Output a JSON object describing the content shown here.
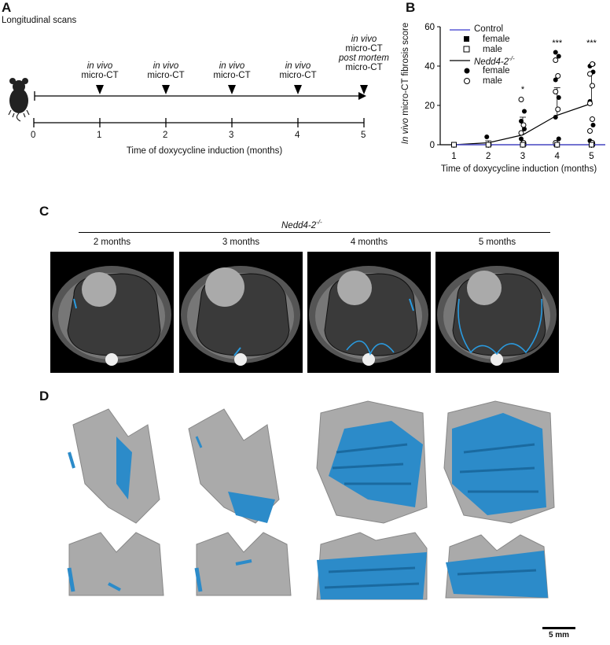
{
  "panel_labels": {
    "a": "A",
    "b": "B",
    "c": "C",
    "d": "D"
  },
  "panel_a": {
    "title": "Longitudinal scans",
    "scans": [
      {
        "line1": "in vivo",
        "line2": "micro-CT"
      },
      {
        "line1": "in vivo",
        "line2": "micro-CT"
      },
      {
        "line1": "in vivo",
        "line2": "micro-CT"
      },
      {
        "line1": "in vivo",
        "line2": "micro-CT"
      },
      {
        "line0": "in vivo",
        "line0b": "micro-CT",
        "line1": "post mortem",
        "line2": "micro-CT"
      }
    ],
    "ticks": [
      "0",
      "1",
      "2",
      "3",
      "4",
      "5"
    ],
    "xlabel": "Time of doxycycline induction (months)"
  },
  "panel_c": {
    "group": "Nedd4-2",
    "group_sup": "-/-",
    "timepoints": [
      "2 months",
      "3 months",
      "4 months",
      "5 months"
    ]
  },
  "panel_d": {
    "scalebar": "5 mm"
  },
  "chart_data": {
    "type": "line",
    "ylabel_italic": "In vivo",
    "ylabel_rest": " micro-CT fibrosis score",
    "xlabel": "Time of doxycycline induction (months)",
    "x": [
      1,
      2,
      3,
      4,
      5
    ],
    "xlim": [
      0.6,
      5.4
    ],
    "ylim": [
      0,
      60
    ],
    "yticks": [
      0,
      20,
      40,
      60
    ],
    "legend": {
      "control": "Control",
      "female": "female",
      "male": "male",
      "ko": "Nedd4-2",
      "ko_sup": "-/-",
      "ko_female": "female",
      "ko_male": "male"
    },
    "colors": {
      "control": "#5a5ad6",
      "ko": "#000000"
    },
    "series": [
      {
        "name": "Control",
        "values": [
          0,
          0,
          0,
          0,
          0
        ]
      },
      {
        "name": "Nedd4-2-/-",
        "values": [
          0,
          1,
          5,
          15,
          21
        ],
        "err_hi": [
          0,
          2,
          14,
          29,
          37
        ]
      }
    ],
    "ko_female_points": [
      [
        2,
        4
      ],
      [
        3,
        17
      ],
      [
        3,
        12
      ],
      [
        3,
        8
      ],
      [
        3,
        3
      ],
      [
        3,
        0
      ],
      [
        4,
        47
      ],
      [
        4,
        45
      ],
      [
        4,
        33
      ],
      [
        4,
        24
      ],
      [
        4,
        14
      ],
      [
        4,
        3
      ],
      [
        4,
        0
      ],
      [
        5,
        41
      ],
      [
        5,
        40
      ],
      [
        5,
        37
      ],
      [
        5,
        22
      ],
      [
        5,
        10
      ],
      [
        5,
        2
      ],
      [
        5,
        0
      ]
    ],
    "ko_male_points": [
      [
        2,
        0
      ],
      [
        3,
        23
      ],
      [
        3,
        10
      ],
      [
        3,
        6
      ],
      [
        3,
        1
      ],
      [
        4,
        43
      ],
      [
        4,
        35
      ],
      [
        4,
        27
      ],
      [
        4,
        18
      ],
      [
        4,
        1
      ],
      [
        5,
        41
      ],
      [
        5,
        36
      ],
      [
        5,
        30
      ],
      [
        5,
        21
      ],
      [
        5,
        13
      ],
      [
        5,
        7
      ],
      [
        5,
        1
      ]
    ],
    "control_points": [
      [
        1,
        0
      ],
      [
        2,
        0
      ],
      [
        3,
        0
      ],
      [
        4,
        0
      ],
      [
        5,
        0
      ]
    ],
    "significance": [
      {
        "x": 3,
        "label": "*"
      },
      {
        "x": 4,
        "label": "***"
      },
      {
        "x": 5,
        "label": "***"
      }
    ]
  }
}
